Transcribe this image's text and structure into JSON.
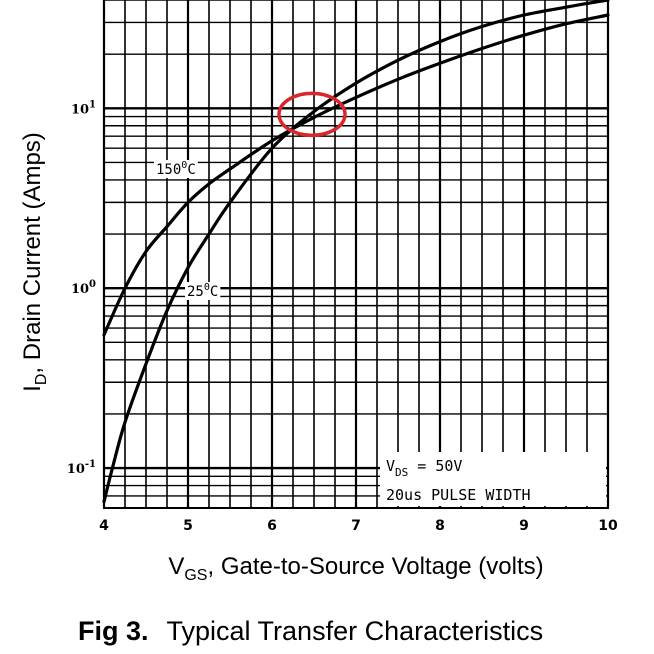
{
  "chart_data": {
    "type": "line",
    "xlabel_main": "V",
    "xlabel_sub": "GS",
    "xlabel_rest": ", Gate-to-Source Voltage (volts)",
    "ylabel_main": "I",
    "ylabel_sub": "D",
    "ylabel_rest": ", Drain Current (Amps)",
    "xlim": [
      4,
      10
    ],
    "ylim": [
      0.06,
      40
    ],
    "yscale": "log",
    "x_ticks": [
      "4",
      "5",
      "6",
      "7",
      "8",
      "9",
      "10"
    ],
    "y_ticks": [
      {
        "base": "10",
        "exp": "1",
        "value": 10
      },
      {
        "base": "10",
        "exp": "0",
        "value": 1
      },
      {
        "base": "10",
        "exp": "-1",
        "value": 0.1
      }
    ],
    "grid": true,
    "series": [
      {
        "name": "150",
        "unit_sup": "0",
        "unit": "C",
        "x": [
          4.0,
          4.25,
          4.5,
          4.75,
          5.0,
          5.25,
          5.5,
          6.0,
          6.5,
          7.0,
          7.5,
          8.0,
          8.5,
          9.0,
          9.5,
          10.0
        ],
        "y": [
          0.55,
          1.0,
          1.6,
          2.2,
          3.0,
          3.8,
          4.6,
          6.6,
          8.9,
          11.5,
          14.5,
          17.8,
          21.5,
          25.5,
          29.5,
          33.0
        ]
      },
      {
        "name": "25",
        "unit_sup": "0",
        "unit": "C",
        "x": [
          4.0,
          4.1,
          4.25,
          4.5,
          4.75,
          5.0,
          5.25,
          5.5,
          6.0,
          6.5,
          7.0,
          7.5,
          8.0,
          8.5,
          9.0,
          9.5,
          10.0
        ],
        "y": [
          0.065,
          0.1,
          0.18,
          0.38,
          0.75,
          1.3,
          2.0,
          3.0,
          6.0,
          9.6,
          13.8,
          18.5,
          23.5,
          28.5,
          33.0,
          36.5,
          40.0
        ]
      }
    ],
    "annotation": {
      "line1_main": "V",
      "line1_sub": "DS",
      "line1_rest": " = 50V",
      "line2": "20us PULSE WIDTH"
    },
    "highlight": {
      "x": 6.5,
      "y": 9.5,
      "color": "#d9262c"
    }
  },
  "caption": {
    "fig": "Fig 3.",
    "title": "Typical Transfer Characteristics"
  }
}
